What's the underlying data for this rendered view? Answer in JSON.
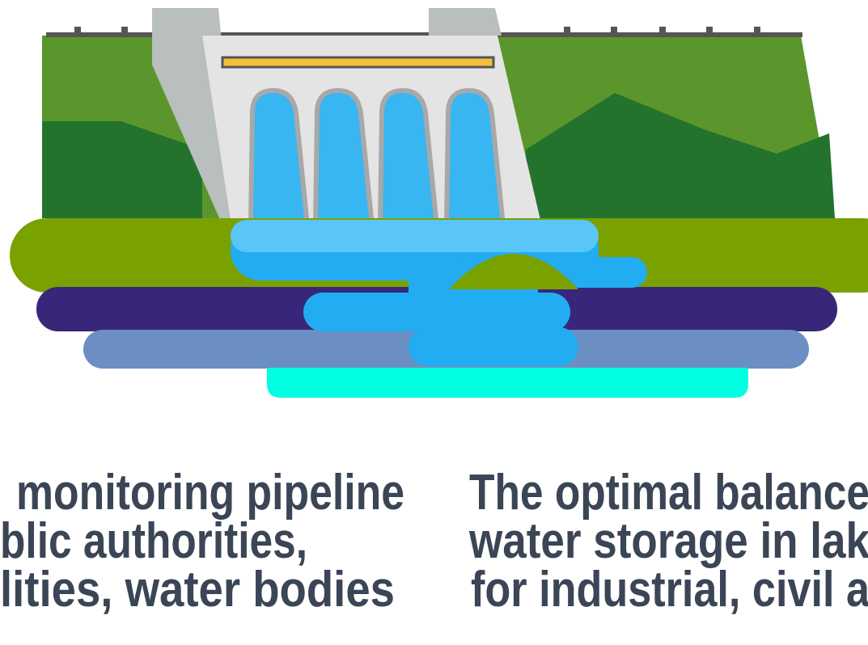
{
  "left_text": {
    "lines": [
      "monitoring pipeline",
      "blic authorities,",
      "lities,  water bodies"
    ]
  },
  "right_text": {
    "lines": [
      "The optimal balance",
      "water storage in lak",
      "for industrial, civil a"
    ]
  }
}
